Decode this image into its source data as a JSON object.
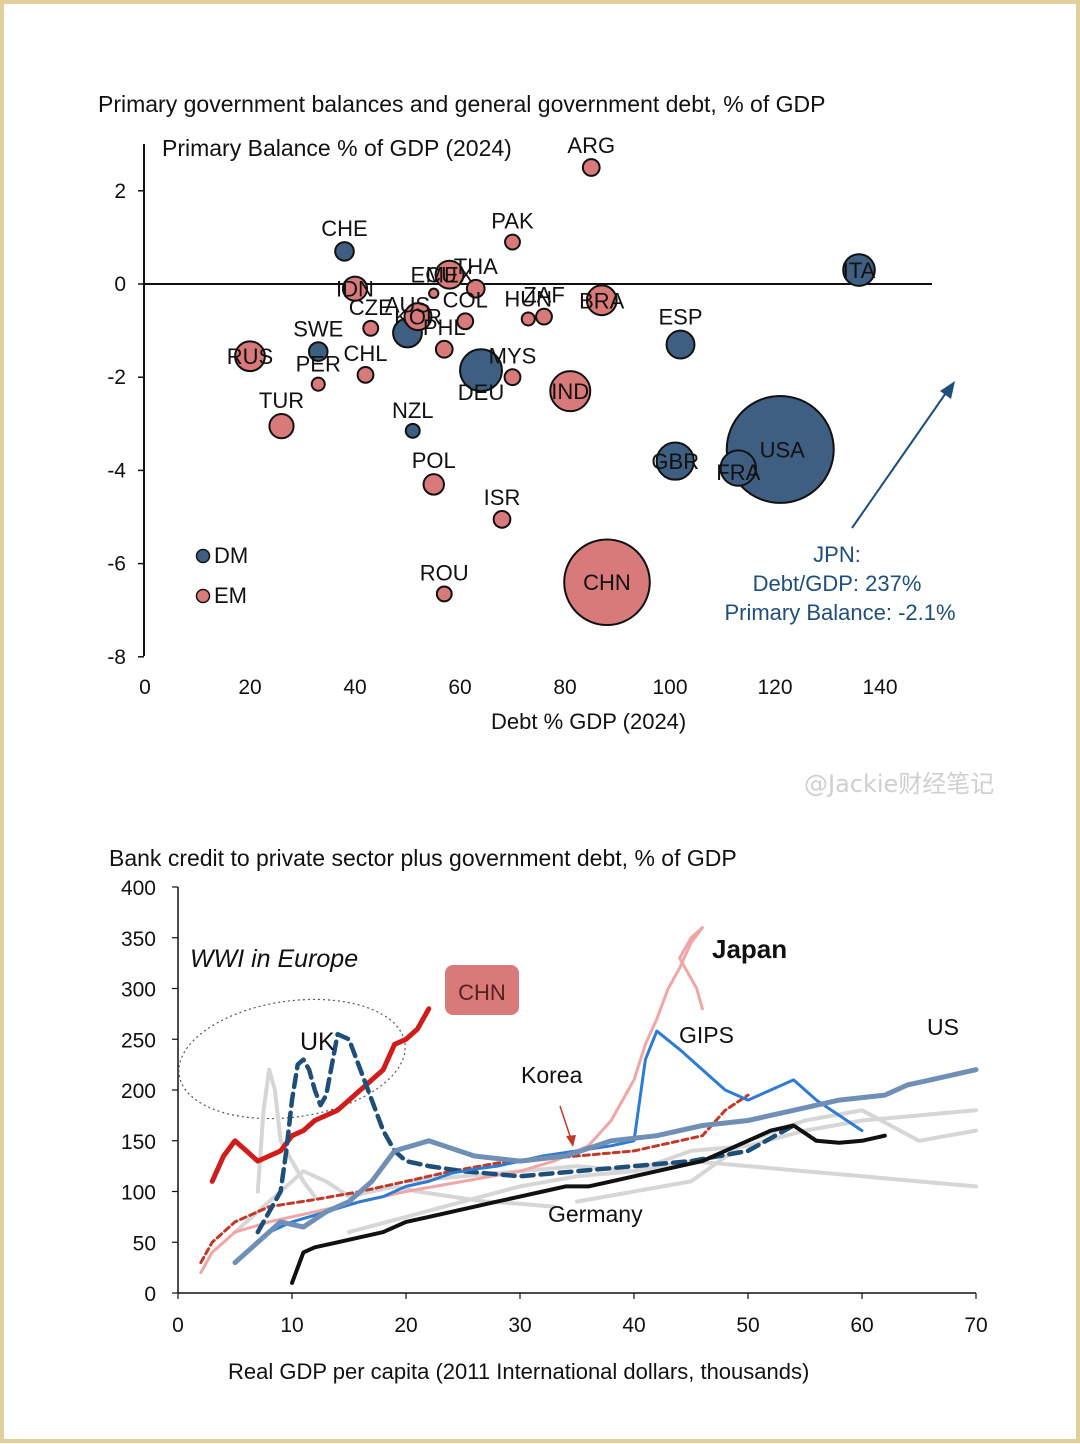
{
  "watermark": "@Jackie财经笔记",
  "chart_data": [
    {
      "type": "scatter",
      "title": "Primary government balances and general government debt, % of GDP",
      "ylabel": "Primary Balance % of GDP (2024)",
      "xlabel": "Debt % GDP (2024)",
      "xlim": [
        0,
        150
      ],
      "ylim": [
        -8,
        3
      ],
      "xticks": [
        0,
        20,
        40,
        60,
        80,
        100,
        120,
        140
      ],
      "yticks": [
        2,
        0,
        -2,
        -4,
        -6,
        -8
      ],
      "legend": [
        {
          "name": "DM",
          "color": "#3f5f82"
        },
        {
          "name": "EM",
          "color": "#d97a7a"
        }
      ],
      "points": [
        {
          "label": "ARG",
          "group": "EM",
          "x": 85,
          "y": 2.5,
          "size": 1.8
        },
        {
          "label": "PAK",
          "group": "EM",
          "x": 70,
          "y": 0.9,
          "size": 1.6
        },
        {
          "label": "CHE",
          "group": "DM",
          "x": 38,
          "y": 0.7,
          "size": 2.0
        },
        {
          "label": "MEX",
          "group": "EM",
          "x": 58,
          "y": 0.2,
          "size": 3.0
        },
        {
          "label": "THA",
          "group": "EM",
          "x": 63,
          "y": -0.1,
          "size": 1.9
        },
        {
          "label": "BRA",
          "group": "EM",
          "x": 87,
          "y": -0.35,
          "size": 3.2
        },
        {
          "label": "ITA",
          "group": "DM",
          "x": 136,
          "y": 0.3,
          "size": 3.4
        },
        {
          "label": "IDN",
          "group": "EM",
          "x": 40,
          "y": -0.1,
          "size": 2.6
        },
        {
          "label": "ECU",
          "group": "EM",
          "x": 55,
          "y": -0.2,
          "size": 1.0
        },
        {
          "label": "HUN",
          "group": "EM",
          "x": 73,
          "y": -0.75,
          "size": 1.4
        },
        {
          "label": "ZAF",
          "group": "EM",
          "x": 76,
          "y": -0.7,
          "size": 1.7
        },
        {
          "label": "KOR",
          "group": "EM",
          "x": 52,
          "y": -0.7,
          "size": 2.9
        },
        {
          "label": "COL",
          "group": "EM",
          "x": 61,
          "y": -0.8,
          "size": 1.7
        },
        {
          "label": "CZE",
          "group": "EM",
          "x": 43,
          "y": -0.95,
          "size": 1.6
        },
        {
          "label": "AUS",
          "group": "DM",
          "x": 50,
          "y": -1.05,
          "size": 3.1
        },
        {
          "label": "SWE",
          "group": "DM",
          "x": 33,
          "y": -1.45,
          "size": 2.0
        },
        {
          "label": "ESP",
          "group": "DM",
          "x": 102,
          "y": -1.3,
          "size": 3.0
        },
        {
          "label": "RUS",
          "group": "EM",
          "x": 20,
          "y": -1.55,
          "size": 3.2
        },
        {
          "label": "PHL",
          "group": "EM",
          "x": 57,
          "y": -1.4,
          "size": 1.8
        },
        {
          "label": "DEU",
          "group": "DM",
          "x": 64,
          "y": -1.85,
          "size": 4.5
        },
        {
          "label": "MYS",
          "group": "EM",
          "x": 70,
          "y": -2.0,
          "size": 1.7
        },
        {
          "label": "CHL",
          "group": "EM",
          "x": 42,
          "y": -1.95,
          "size": 1.7
        },
        {
          "label": "PER",
          "group": "EM",
          "x": 33,
          "y": -2.15,
          "size": 1.4
        },
        {
          "label": "IND",
          "group": "EM",
          "x": 81,
          "y": -2.3,
          "size": 4.3
        },
        {
          "label": "TUR",
          "group": "EM",
          "x": 26,
          "y": -3.05,
          "size": 2.6
        },
        {
          "label": "NZL",
          "group": "DM",
          "x": 51,
          "y": -3.15,
          "size": 1.5
        },
        {
          "label": "GBR",
          "group": "DM",
          "x": 101,
          "y": -3.8,
          "size": 4.0
        },
        {
          "label": "FRA",
          "group": "DM",
          "x": 113,
          "y": -3.95,
          "size": 3.8
        },
        {
          "label": "USA",
          "group": "DM",
          "x": 121,
          "y": -3.55,
          "size": 11.5
        },
        {
          "label": "POL",
          "group": "EM",
          "x": 55,
          "y": -4.3,
          "size": 2.2
        },
        {
          "label": "ISR",
          "group": "EM",
          "x": 68,
          "y": -5.05,
          "size": 1.8
        },
        {
          "label": "CHN",
          "group": "EM",
          "x": 88,
          "y": -6.4,
          "size": 9.2
        },
        {
          "label": "ROU",
          "group": "EM",
          "x": 57,
          "y": -6.65,
          "size": 1.6
        }
      ],
      "annotation": {
        "lines": [
          "JPN:",
          "Debt/GDP: 237%",
          "Primary Balance: -2.1%"
        ],
        "color": "#1f4e79"
      }
    },
    {
      "type": "line",
      "title": "Bank credit to private sector plus government debt, % of GDP",
      "xlabel": "Real GDP per capita (2011 International dollars, thousands)",
      "ylabel": "",
      "xlim": [
        0,
        70
      ],
      "ylim": [
        0,
        400
      ],
      "xticks": [
        0,
        10,
        20,
        30,
        40,
        50,
        60,
        70
      ],
      "yticks": [
        400,
        350,
        300,
        250,
        200,
        150,
        100,
        50,
        0
      ],
      "annotations": [
        "WWI in Europe",
        "Japan",
        "CHN",
        "UK",
        "Korea",
        "GIPS",
        "US",
        "Germany"
      ],
      "series": [
        {
          "name": "Other countries (grey)",
          "color": "#d6d6d6",
          "x": [
            5,
            7,
            9,
            11,
            13,
            15,
            17,
            19,
            21,
            24,
            27,
            30,
            33
          ],
          "y": [
            60,
            80,
            100,
            120,
            110,
            95,
            100,
            105,
            100,
            95,
            90,
            88,
            85
          ]
        },
        {
          "name": "Other countries (grey)",
          "color": "#d6d6d6",
          "x": [
            7,
            7.5,
            8,
            8.5,
            9,
            10,
            11,
            12
          ],
          "y": [
            100,
            180,
            220,
            200,
            150,
            130,
            110,
            95
          ]
        },
        {
          "name": "Other countries (grey)",
          "color": "#d6d6d6",
          "x": [
            20,
            25,
            30,
            35,
            40,
            45,
            50,
            55,
            60,
            65,
            70
          ],
          "y": [
            110,
            115,
            120,
            125,
            120,
            130,
            125,
            120,
            115,
            110,
            105
          ]
        },
        {
          "name": "Other countries (grey)",
          "color": "#d6d6d6",
          "x": [
            35,
            40,
            45,
            50,
            55,
            60,
            65,
            70
          ],
          "y": [
            90,
            100,
            110,
            150,
            170,
            180,
            150,
            160
          ]
        },
        {
          "name": "Other countries (grey)",
          "color": "#d6d6d6",
          "x": [
            15,
            20,
            25,
            30,
            35,
            40,
            45,
            50,
            55,
            60,
            65,
            70
          ],
          "y": [
            60,
            75,
            90,
            105,
            115,
            120,
            140,
            145,
            160,
            170,
            175,
            180
          ]
        },
        {
          "name": "Japan",
          "color": "#f0a6a6",
          "x": [
            2,
            3,
            5,
            8,
            12,
            16,
            20,
            25,
            30,
            33,
            36,
            38,
            40,
            41,
            42,
            43,
            44,
            45,
            46,
            45,
            44,
            44.5,
            45.5,
            46
          ],
          "y": [
            20,
            40,
            60,
            70,
            80,
            90,
            100,
            110,
            120,
            130,
            145,
            170,
            210,
            245,
            270,
            300,
            320,
            345,
            360,
            350,
            330,
            320,
            300,
            280
          ]
        },
        {
          "name": "Korea",
          "color": "#c0392b",
          "dash": "6 4",
          "x": [
            2,
            3,
            5,
            8,
            12,
            16,
            20,
            24,
            28,
            32,
            36,
            40,
            42,
            44,
            46,
            48,
            50
          ],
          "y": [
            30,
            50,
            70,
            85,
            92,
            100,
            110,
            120,
            128,
            132,
            136,
            140,
            145,
            150,
            155,
            180,
            195
          ]
        },
        {
          "name": "CHN",
          "color": "#d11c1c",
          "x": [
            3,
            4,
            5,
            6,
            7,
            8,
            9,
            10,
            11,
            12,
            13,
            14,
            15,
            16,
            17,
            18,
            19,
            20,
            21,
            22
          ],
          "y": [
            110,
            135,
            150,
            140,
            130,
            135,
            140,
            155,
            160,
            170,
            175,
            180,
            190,
            200,
            210,
            220,
            245,
            250,
            260,
            280
          ]
        },
        {
          "name": "UK",
          "color": "#1f4e79",
          "dash": "12 7",
          "x": [
            7,
            8,
            9,
            9.5,
            10,
            10.5,
            11,
            11.5,
            12,
            12.5,
            13,
            14,
            15,
            16,
            17,
            18,
            19,
            20,
            22,
            25,
            30,
            35,
            40,
            45,
            50,
            54
          ],
          "y": [
            60,
            80,
            100,
            140,
            190,
            225,
            230,
            220,
            200,
            185,
            195,
            255,
            250,
            220,
            190,
            160,
            140,
            130,
            125,
            120,
            115,
            120,
            125,
            130,
            140,
            165
          ]
        },
        {
          "name": "GIPS",
          "color": "#2e7bd4",
          "x": [
            5,
            8,
            10,
            13,
            16,
            18,
            20,
            22,
            24,
            26,
            28,
            30,
            32,
            35,
            38,
            40,
            41,
            42,
            44,
            46,
            48,
            50,
            52,
            54,
            56,
            58,
            60
          ],
          "y": [
            30,
            60,
            70,
            80,
            90,
            95,
            105,
            110,
            118,
            122,
            125,
            130,
            135,
            140,
            145,
            150,
            230,
            258,
            240,
            220,
            200,
            190,
            200,
            210,
            190,
            175,
            160
          ]
        },
        {
          "name": "US",
          "color": "#6f8fb5",
          "x": [
            5,
            7,
            9,
            11,
            13,
            15,
            17,
            19,
            22,
            26,
            30,
            34,
            38,
            42,
            46,
            50,
            54,
            58,
            62,
            64,
            66,
            68,
            70
          ],
          "y": [
            30,
            50,
            70,
            65,
            80,
            90,
            110,
            140,
            150,
            135,
            130,
            135,
            150,
            155,
            165,
            170,
            180,
            190,
            195,
            205,
            210,
            215,
            220
          ]
        },
        {
          "name": "Germany",
          "color": "#111111",
          "x": [
            10,
            11,
            12,
            14,
            16,
            18,
            20,
            22,
            24,
            26,
            28,
            30,
            32,
            34,
            36,
            38,
            40,
            42,
            44,
            46,
            48,
            50,
            52,
            54,
            56,
            58,
            60,
            62
          ],
          "y": [
            10,
            40,
            45,
            50,
            55,
            60,
            70,
            75,
            80,
            85,
            90,
            95,
            100,
            105,
            105,
            110,
            115,
            120,
            125,
            130,
            140,
            150,
            160,
            165,
            150,
            148,
            150,
            155
          ]
        }
      ]
    }
  ]
}
